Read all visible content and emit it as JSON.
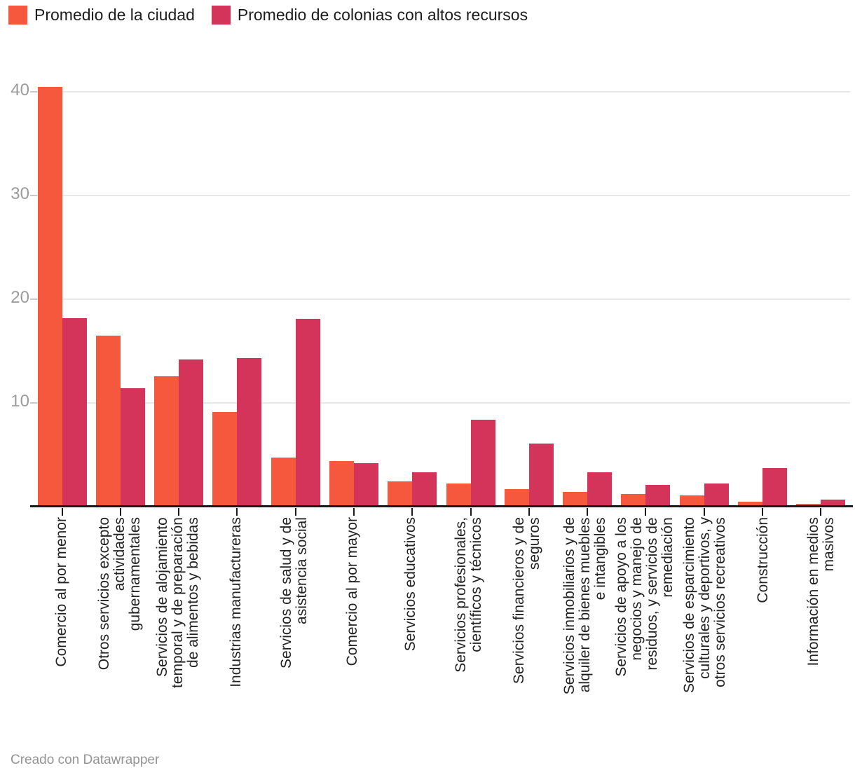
{
  "legend": {
    "items": [
      {
        "label": "Promedio de la ciudad",
        "color": "#F5583C"
      },
      {
        "label": "Promedio de colonias con altos recursos",
        "color": "#D43459"
      }
    ]
  },
  "chart_data": {
    "type": "bar",
    "title": "",
    "categories": [
      "Comercio al por menor",
      "Otros servicios excepto actividades gubernamentales",
      "Servicios de alojamiento temporal y de preparación de alimentos y bebidas",
      "Industrias manufactureras",
      "Servicios de salud y de asistencia social",
      "Comercio al por mayor",
      "Servicios educativos",
      "Servicios profesionales, científicos y técnicos",
      "Servicios financieros y de seguros",
      "Servicios inmobiliarios y de alquiler de bienes muebles e intangibles",
      "Servicios de apoyo a los negocios y manejo de residuos, y servicios de remediación",
      "Servicios de esparcimiento culturales y deportivos, y otros servicios recreativos",
      "Construcción",
      "Información en medios masivos"
    ],
    "categories_lines": [
      [
        "Comercio al por menor"
      ],
      [
        "Otros servicios excepto",
        "actividades",
        "gubernamentales"
      ],
      [
        "Servicios de alojamiento",
        "temporal y de preparación",
        "de alimentos y bebidas"
      ],
      [
        "Industrias manufactureras"
      ],
      [
        "Servicios de salud y de",
        "asistencia social"
      ],
      [
        "Comercio al por mayor"
      ],
      [
        "Servicios educativos"
      ],
      [
        "Servicios profesionales,",
        "científicos y técnicos"
      ],
      [
        "Servicios financieros y de",
        "seguros"
      ],
      [
        "Servicios inmobiliarios y de",
        "alquiler de bienes muebles",
        "e intangibles"
      ],
      [
        "Servicios de apoyo a los",
        "negocios y manejo de",
        "residuos, y servicios de",
        "remediación"
      ],
      [
        "Servicios de esparcimiento",
        "culturales y deportivos, y",
        "otros servicios recreativos"
      ],
      [
        "Construcción"
      ],
      [
        "Información en medios",
        "masivos"
      ]
    ],
    "series": [
      {
        "name": "Promedio de la ciudad",
        "color": "#F5583C",
        "values": [
          40.5,
          16.5,
          12.6,
          9.1,
          4.7,
          4.4,
          2.4,
          2.2,
          1.7,
          1.4,
          1.2,
          1.1,
          0.5,
          0.3
        ]
      },
      {
        "name": "Promedio de colonias con altos recursos",
        "color": "#D43459",
        "values": [
          18.2,
          11.4,
          14.2,
          14.3,
          18.1,
          4.2,
          3.3,
          8.4,
          6.1,
          3.3,
          2.1,
          2.2,
          3.7,
          0.7
        ]
      }
    ],
    "xlabel": "",
    "ylabel": "",
    "ylim": [
      0,
      42
    ],
    "yticks": [
      10,
      20,
      30,
      40
    ],
    "grid": "horizontal",
    "legend_position": "top-left",
    "x_label_rotation": -90
  },
  "footer": {
    "credit": "Creado con Datawrapper"
  }
}
